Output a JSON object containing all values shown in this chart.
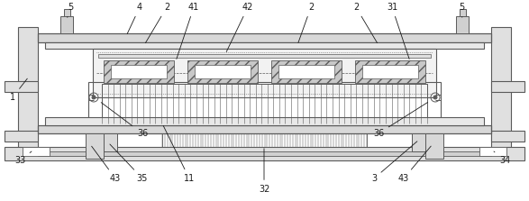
{
  "bg_color": "#ffffff",
  "lc": "#5a5a5a",
  "lc2": "#888888",
  "fig_width": 5.87,
  "fig_height": 2.23,
  "font_size": 7.0,
  "label_color": "#1a1a1a"
}
